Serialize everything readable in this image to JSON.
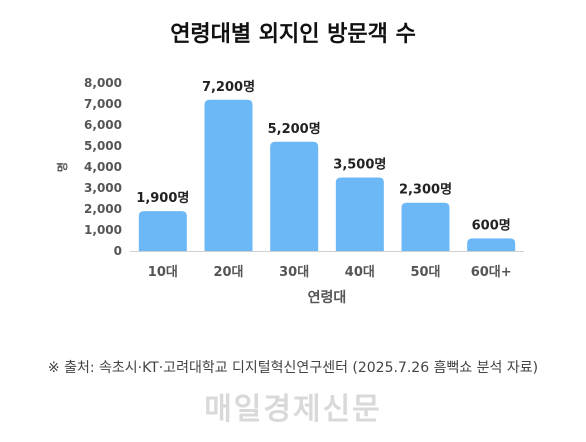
{
  "title": "연령대별 외지인 방문객 수",
  "source": "※ 출처: 속초시·KT·고려대학교 디지털혁신연구센터 (2025.7.26 흠뻑쇼 분석 자료)",
  "watermark": "매일경제신문",
  "colors": {
    "bar": "#6cb8f6",
    "axis_text": "#555555",
    "label_text": "#222222",
    "baseline": "#d0d0d0"
  },
  "chart_data": {
    "type": "bar",
    "title": "연령대별 외지인 방문객 수",
    "xlabel": "연령대",
    "ylabel": "명",
    "categories": [
      "10대",
      "20대",
      "30대",
      "40대",
      "50대",
      "60대+"
    ],
    "values": [
      1900,
      7200,
      5200,
      3500,
      2300,
      600
    ],
    "data_labels": [
      "1,900명",
      "7,200명",
      "5,200명",
      "3,500명",
      "2,300명",
      "600명"
    ],
    "yticks": [
      0,
      1000,
      2000,
      3000,
      4000,
      5000,
      6000,
      7000,
      8000
    ],
    "ytick_labels": [
      "0",
      "1,000",
      "2,000",
      "3,000",
      "4,000",
      "5,000",
      "6,000",
      "7,000",
      "8,000"
    ],
    "ylim": [
      0,
      8000
    ],
    "grid": false,
    "legend": "none"
  }
}
